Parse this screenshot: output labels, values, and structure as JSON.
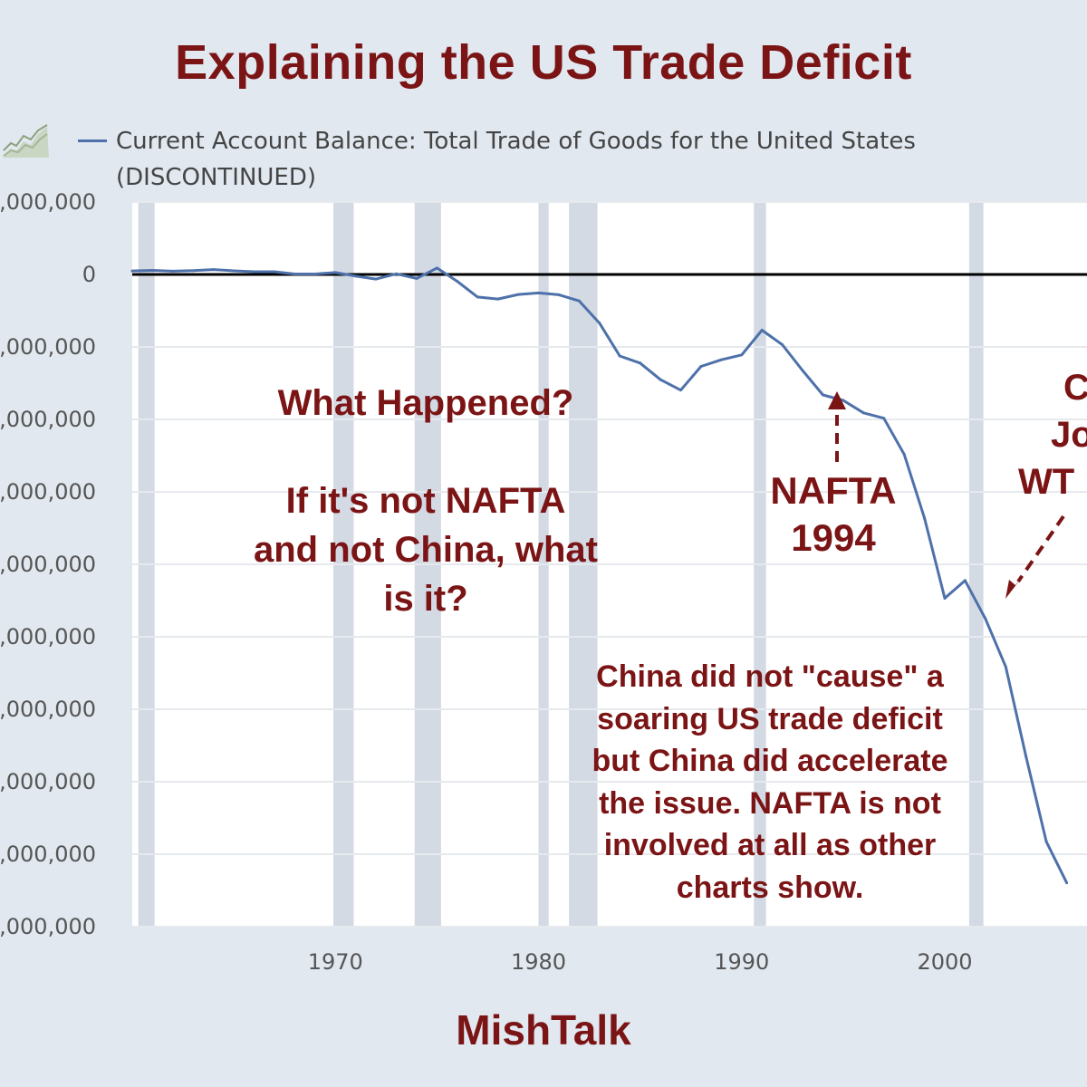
{
  "title": "Explaining the US Trade Deficit",
  "footer": "MishTalk",
  "legend": {
    "icon": "line-chart-icon",
    "lines": [
      "Current Account Balance: Total Trade of Goods for the United States",
      "(DISCONTINUED)"
    ]
  },
  "annotations": {
    "what_happened": {
      "question": "What Happened?",
      "lines": [
        "If it's not NAFTA",
        "and not China, what",
        "is it?"
      ]
    },
    "nafta": [
      "NAFTA",
      "1994"
    ],
    "china": [
      "C",
      "Jo",
      "WT"
    ],
    "note": [
      "China did not \"cause\" a",
      "soaring US trade deficit",
      "but China did accelerate",
      "the issue. NAFTA is not",
      "involved at all as other",
      "charts show."
    ]
  },
  "colors": {
    "title": "#7b1415",
    "series": "#4e71aa",
    "recession": "#d3dae4",
    "plot_bg": "#ffffff",
    "page_bg": "#e1e8f0"
  },
  "chart_data": {
    "type": "line",
    "title": "Explaining the US Trade Deficit",
    "xlabel": "",
    "ylabel": "",
    "xlim": [
      1960,
      2007
    ],
    "ylim": [
      -900000,
      100000
    ],
    "y_ticks": [
      {
        "value": 100000,
        "label": ",000,000"
      },
      {
        "value": 0,
        "label": "0"
      },
      {
        "value": -100000,
        "label": ",000,000"
      },
      {
        "value": -200000,
        "label": ",000,000"
      },
      {
        "value": -300000,
        "label": ",000,000"
      },
      {
        "value": -400000,
        "label": ",000,000"
      },
      {
        "value": -500000,
        "label": ",000,000"
      },
      {
        "value": -600000,
        "label": ",000,000"
      },
      {
        "value": -700000,
        "label": ",000,000"
      },
      {
        "value": -800000,
        "label": ",000,000"
      },
      {
        "value": -900000,
        "label": ",000,000"
      }
    ],
    "x_ticks": [
      {
        "value": 1970,
        "label": "1970"
      },
      {
        "value": 1980,
        "label": "1980"
      },
      {
        "value": 1990,
        "label": "1990"
      },
      {
        "value": 2000,
        "label": "2000"
      }
    ],
    "recessions": [
      [
        1960.3,
        1961.1
      ],
      [
        1969.9,
        1970.9
      ],
      [
        1973.9,
        1975.2
      ],
      [
        1980.0,
        1980.5
      ],
      [
        1981.5,
        1982.9
      ],
      [
        1990.6,
        1991.2
      ],
      [
        2001.2,
        2001.9
      ]
    ],
    "zero_line": true,
    "series": [
      {
        "name": "Current Account Balance: Total Trade of Goods for the United States",
        "x": [
          1960,
          1961,
          1962,
          1963,
          1964,
          1965,
          1966,
          1967,
          1968,
          1969,
          1970,
          1971,
          1972,
          1973,
          1974,
          1975,
          1976,
          1977,
          1978,
          1979,
          1980,
          1981,
          1982,
          1983,
          1984,
          1985,
          1986,
          1987,
          1988,
          1989,
          1990,
          1991,
          1992,
          1993,
          1994,
          1995,
          1996,
          1997,
          1998,
          1999,
          2000,
          2001,
          2002,
          2003,
          2004,
          2005,
          2006
        ],
        "values": [
          4900,
          5600,
          4500,
          5200,
          6800,
          5000,
          3800,
          3800,
          600,
          600,
          2600,
          -2300,
          -6400,
          900,
          -5500,
          8900,
          -9500,
          -31100,
          -33900,
          -27600,
          -25500,
          -28000,
          -36500,
          -67100,
          -112500,
          -122200,
          -145100,
          -159600,
          -126900,
          -117700,
          -111000,
          -76900,
          -96900,
          -132500,
          -166200,
          -173700,
          -191000,
          -198400,
          -248200,
          -336300,
          -446800,
          -422400,
          -475200,
          -541400,
          -665400,
          -782700,
          -839500
        ]
      }
    ]
  }
}
